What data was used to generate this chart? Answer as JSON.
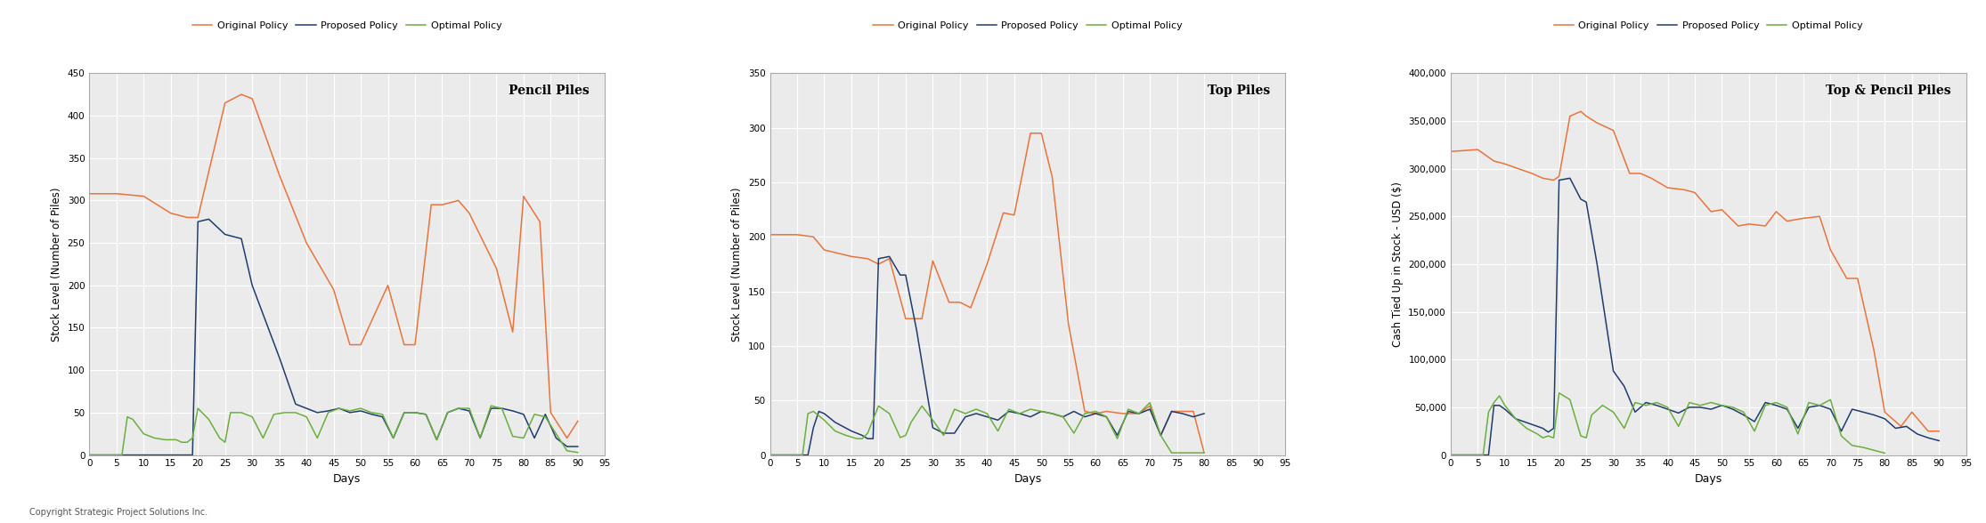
{
  "colors": {
    "original": "#E8743B",
    "proposed": "#1F3C6E",
    "optimal": "#6AAF3D"
  },
  "legend_labels": [
    "Original Policy",
    "Proposed Policy",
    "Optimal Policy"
  ],
  "subplot1": {
    "title": "Pencil Piles",
    "ylabel": "Stock Level (Number of Piles)",
    "xlabel": "Days",
    "ylim": [
      0,
      450
    ],
    "yticks": [
      0,
      50,
      100,
      150,
      200,
      250,
      300,
      350,
      400,
      450
    ],
    "xlim": [
      0,
      95
    ],
    "xticks": [
      0,
      5,
      10,
      15,
      20,
      25,
      30,
      35,
      40,
      45,
      50,
      55,
      60,
      65,
      70,
      75,
      80,
      85,
      90,
      95
    ],
    "original": [
      [
        0,
        308
      ],
      [
        5,
        308
      ],
      [
        10,
        305
      ],
      [
        15,
        285
      ],
      [
        18,
        280
      ],
      [
        20,
        280
      ],
      [
        25,
        415
      ],
      [
        28,
        425
      ],
      [
        30,
        420
      ],
      [
        35,
        330
      ],
      [
        40,
        250
      ],
      [
        45,
        195
      ],
      [
        48,
        130
      ],
      [
        50,
        130
      ],
      [
        55,
        200
      ],
      [
        58,
        130
      ],
      [
        60,
        130
      ],
      [
        63,
        295
      ],
      [
        65,
        295
      ],
      [
        68,
        300
      ],
      [
        70,
        285
      ],
      [
        75,
        220
      ],
      [
        78,
        145
      ],
      [
        80,
        305
      ],
      [
        83,
        275
      ],
      [
        85,
        50
      ],
      [
        88,
        20
      ],
      [
        90,
        40
      ]
    ],
    "proposed": [
      [
        0,
        0
      ],
      [
        19,
        0
      ],
      [
        20,
        275
      ],
      [
        22,
        278
      ],
      [
        25,
        260
      ],
      [
        28,
        255
      ],
      [
        30,
        200
      ],
      [
        35,
        115
      ],
      [
        38,
        60
      ],
      [
        40,
        55
      ],
      [
        42,
        50
      ],
      [
        44,
        52
      ],
      [
        46,
        55
      ],
      [
        48,
        50
      ],
      [
        50,
        52
      ],
      [
        52,
        48
      ],
      [
        54,
        45
      ],
      [
        56,
        20
      ],
      [
        58,
        50
      ],
      [
        60,
        50
      ],
      [
        62,
        48
      ],
      [
        64,
        18
      ],
      [
        66,
        50
      ],
      [
        68,
        55
      ],
      [
        70,
        52
      ],
      [
        72,
        20
      ],
      [
        74,
        55
      ],
      [
        76,
        55
      ],
      [
        78,
        52
      ],
      [
        80,
        48
      ],
      [
        82,
        20
      ],
      [
        84,
        48
      ],
      [
        86,
        20
      ],
      [
        88,
        10
      ],
      [
        90,
        10
      ]
    ],
    "optimal": [
      [
        0,
        0
      ],
      [
        6,
        0
      ],
      [
        7,
        45
      ],
      [
        8,
        42
      ],
      [
        10,
        25
      ],
      [
        12,
        20
      ],
      [
        14,
        18
      ],
      [
        16,
        18
      ],
      [
        17,
        15
      ],
      [
        18,
        15
      ],
      [
        19,
        20
      ],
      [
        20,
        55
      ],
      [
        22,
        42
      ],
      [
        24,
        20
      ],
      [
        25,
        15
      ],
      [
        26,
        50
      ],
      [
        28,
        50
      ],
      [
        30,
        45
      ],
      [
        32,
        20
      ],
      [
        34,
        48
      ],
      [
        36,
        50
      ],
      [
        38,
        50
      ],
      [
        40,
        45
      ],
      [
        42,
        20
      ],
      [
        44,
        50
      ],
      [
        46,
        55
      ],
      [
        48,
        52
      ],
      [
        50,
        55
      ],
      [
        52,
        50
      ],
      [
        54,
        48
      ],
      [
        56,
        20
      ],
      [
        58,
        50
      ],
      [
        60,
        50
      ],
      [
        62,
        48
      ],
      [
        64,
        18
      ],
      [
        66,
        50
      ],
      [
        68,
        55
      ],
      [
        70,
        55
      ],
      [
        72,
        20
      ],
      [
        74,
        58
      ],
      [
        76,
        55
      ],
      [
        78,
        22
      ],
      [
        80,
        20
      ],
      [
        82,
        48
      ],
      [
        84,
        45
      ],
      [
        86,
        25
      ],
      [
        88,
        5
      ],
      [
        90,
        3
      ]
    ]
  },
  "subplot2": {
    "title": "Top Piles",
    "ylabel": "Stock Level (Number of Piles)",
    "xlabel": "Days",
    "ylim": [
      0,
      350
    ],
    "yticks": [
      0,
      50,
      100,
      150,
      200,
      250,
      300,
      350
    ],
    "xlim": [
      0,
      95
    ],
    "xticks": [
      0,
      5,
      10,
      15,
      20,
      25,
      30,
      35,
      40,
      45,
      50,
      55,
      60,
      65,
      70,
      75,
      80,
      85,
      90,
      95
    ],
    "original": [
      [
        0,
        202
      ],
      [
        5,
        202
      ],
      [
        8,
        200
      ],
      [
        10,
        188
      ],
      [
        15,
        182
      ],
      [
        18,
        180
      ],
      [
        20,
        175
      ],
      [
        22,
        180
      ],
      [
        25,
        125
      ],
      [
        28,
        125
      ],
      [
        30,
        178
      ],
      [
        33,
        140
      ],
      [
        35,
        140
      ],
      [
        37,
        135
      ],
      [
        40,
        175
      ],
      [
        43,
        222
      ],
      [
        45,
        220
      ],
      [
        48,
        295
      ],
      [
        50,
        295
      ],
      [
        52,
        255
      ],
      [
        55,
        120
      ],
      [
        58,
        40
      ],
      [
        60,
        38
      ],
      [
        62,
        40
      ],
      [
        65,
        38
      ],
      [
        68,
        38
      ],
      [
        70,
        45
      ],
      [
        72,
        18
      ],
      [
        74,
        40
      ],
      [
        76,
        40
      ],
      [
        78,
        40
      ],
      [
        80,
        2
      ]
    ],
    "proposed": [
      [
        0,
        0
      ],
      [
        7,
        0
      ],
      [
        8,
        25
      ],
      [
        9,
        40
      ],
      [
        10,
        38
      ],
      [
        12,
        30
      ],
      [
        15,
        22
      ],
      [
        17,
        18
      ],
      [
        18,
        15
      ],
      [
        19,
        15
      ],
      [
        20,
        180
      ],
      [
        22,
        182
      ],
      [
        24,
        165
      ],
      [
        25,
        165
      ],
      [
        27,
        115
      ],
      [
        30,
        25
      ],
      [
        32,
        20
      ],
      [
        34,
        20
      ],
      [
        36,
        35
      ],
      [
        38,
        38
      ],
      [
        40,
        35
      ],
      [
        42,
        32
      ],
      [
        44,
        40
      ],
      [
        46,
        38
      ],
      [
        48,
        35
      ],
      [
        50,
        40
      ],
      [
        52,
        38
      ],
      [
        54,
        35
      ],
      [
        56,
        40
      ],
      [
        58,
        35
      ],
      [
        60,
        38
      ],
      [
        62,
        35
      ],
      [
        64,
        18
      ],
      [
        66,
        40
      ],
      [
        68,
        38
      ],
      [
        70,
        42
      ],
      [
        72,
        18
      ],
      [
        74,
        40
      ],
      [
        76,
        38
      ],
      [
        78,
        35
      ],
      [
        80,
        38
      ]
    ],
    "optimal": [
      [
        0,
        0
      ],
      [
        6,
        0
      ],
      [
        7,
        38
      ],
      [
        8,
        40
      ],
      [
        10,
        32
      ],
      [
        12,
        22
      ],
      [
        14,
        18
      ],
      [
        16,
        15
      ],
      [
        17,
        15
      ],
      [
        18,
        20
      ],
      [
        20,
        45
      ],
      [
        22,
        38
      ],
      [
        24,
        16
      ],
      [
        25,
        18
      ],
      [
        26,
        30
      ],
      [
        28,
        45
      ],
      [
        30,
        32
      ],
      [
        32,
        18
      ],
      [
        34,
        42
      ],
      [
        36,
        38
      ],
      [
        38,
        42
      ],
      [
        40,
        38
      ],
      [
        42,
        22
      ],
      [
        44,
        42
      ],
      [
        46,
        38
      ],
      [
        48,
        42
      ],
      [
        50,
        40
      ],
      [
        52,
        38
      ],
      [
        54,
        35
      ],
      [
        56,
        20
      ],
      [
        58,
        38
      ],
      [
        60,
        40
      ],
      [
        62,
        35
      ],
      [
        64,
        15
      ],
      [
        66,
        42
      ],
      [
        68,
        38
      ],
      [
        70,
        48
      ],
      [
        72,
        18
      ],
      [
        74,
        2
      ],
      [
        76,
        2
      ],
      [
        78,
        2
      ],
      [
        80,
        2
      ]
    ]
  },
  "subplot3": {
    "title": "Top & Pencil Piles",
    "ylabel": "Cash Tied Up in Stock - USD ($)",
    "xlabel": "Days",
    "ylim": [
      0,
      400000
    ],
    "yticks": [
      0,
      50000,
      100000,
      150000,
      200000,
      250000,
      300000,
      350000,
      400000
    ],
    "xlim": [
      0,
      95
    ],
    "xticks": [
      0,
      5,
      10,
      15,
      20,
      25,
      30,
      35,
      40,
      45,
      50,
      55,
      60,
      65,
      70,
      75,
      80,
      85,
      90,
      95
    ],
    "original": [
      [
        0,
        318000
      ],
      [
        5,
        320000
      ],
      [
        8,
        308000
      ],
      [
        10,
        305000
      ],
      [
        15,
        295000
      ],
      [
        17,
        290000
      ],
      [
        19,
        288000
      ],
      [
        20,
        292000
      ],
      [
        22,
        355000
      ],
      [
        24,
        360000
      ],
      [
        25,
        355000
      ],
      [
        27,
        348000
      ],
      [
        30,
        340000
      ],
      [
        33,
        295000
      ],
      [
        35,
        295000
      ],
      [
        37,
        290000
      ],
      [
        40,
        280000
      ],
      [
        43,
        278000
      ],
      [
        45,
        275000
      ],
      [
        48,
        255000
      ],
      [
        50,
        257000
      ],
      [
        53,
        240000
      ],
      [
        55,
        242000
      ],
      [
        58,
        240000
      ],
      [
        60,
        255000
      ],
      [
        62,
        245000
      ],
      [
        65,
        248000
      ],
      [
        68,
        250000
      ],
      [
        70,
        215000
      ],
      [
        73,
        185000
      ],
      [
        75,
        185000
      ],
      [
        78,
        110000
      ],
      [
        80,
        45000
      ],
      [
        83,
        30000
      ],
      [
        85,
        45000
      ],
      [
        88,
        25000
      ],
      [
        90,
        25000
      ]
    ],
    "proposed": [
      [
        0,
        0
      ],
      [
        7,
        0
      ],
      [
        8,
        52000
      ],
      [
        9,
        52000
      ],
      [
        10,
        48000
      ],
      [
        12,
        38000
      ],
      [
        15,
        32000
      ],
      [
        17,
        28000
      ],
      [
        18,
        24000
      ],
      [
        19,
        28000
      ],
      [
        20,
        288000
      ],
      [
        22,
        290000
      ],
      [
        24,
        268000
      ],
      [
        25,
        265000
      ],
      [
        27,
        200000
      ],
      [
        30,
        88000
      ],
      [
        32,
        72000
      ],
      [
        34,
        45000
      ],
      [
        36,
        55000
      ],
      [
        38,
        52000
      ],
      [
        40,
        48000
      ],
      [
        42,
        44000
      ],
      [
        44,
        50000
      ],
      [
        46,
        50000
      ],
      [
        48,
        48000
      ],
      [
        50,
        52000
      ],
      [
        52,
        48000
      ],
      [
        54,
        42000
      ],
      [
        56,
        35000
      ],
      [
        58,
        55000
      ],
      [
        60,
        52000
      ],
      [
        62,
        48000
      ],
      [
        64,
        28000
      ],
      [
        66,
        50000
      ],
      [
        68,
        52000
      ],
      [
        70,
        48000
      ],
      [
        72,
        25000
      ],
      [
        74,
        48000
      ],
      [
        76,
        45000
      ],
      [
        78,
        42000
      ],
      [
        80,
        38000
      ],
      [
        82,
        28000
      ],
      [
        84,
        30000
      ],
      [
        86,
        22000
      ],
      [
        88,
        18000
      ],
      [
        90,
        15000
      ]
    ],
    "optimal": [
      [
        0,
        0
      ],
      [
        6,
        0
      ],
      [
        7,
        45000
      ],
      [
        8,
        55000
      ],
      [
        9,
        62000
      ],
      [
        10,
        52000
      ],
      [
        12,
        38000
      ],
      [
        14,
        28000
      ],
      [
        16,
        22000
      ],
      [
        17,
        18000
      ],
      [
        18,
        20000
      ],
      [
        19,
        18000
      ],
      [
        20,
        65000
      ],
      [
        22,
        58000
      ],
      [
        24,
        20000
      ],
      [
        25,
        18000
      ],
      [
        26,
        42000
      ],
      [
        28,
        52000
      ],
      [
        30,
        45000
      ],
      [
        32,
        28000
      ],
      [
        34,
        55000
      ],
      [
        36,
        52000
      ],
      [
        38,
        55000
      ],
      [
        40,
        50000
      ],
      [
        42,
        30000
      ],
      [
        44,
        55000
      ],
      [
        46,
        52000
      ],
      [
        48,
        55000
      ],
      [
        50,
        52000
      ],
      [
        52,
        50000
      ],
      [
        54,
        45000
      ],
      [
        56,
        25000
      ],
      [
        58,
        52000
      ],
      [
        60,
        55000
      ],
      [
        62,
        50000
      ],
      [
        64,
        22000
      ],
      [
        66,
        55000
      ],
      [
        68,
        52000
      ],
      [
        70,
        58000
      ],
      [
        72,
        20000
      ],
      [
        74,
        10000
      ],
      [
        76,
        8000
      ],
      [
        78,
        5000
      ],
      [
        80,
        2000
      ]
    ]
  },
  "copyright": "Copyright Strategic Project Solutions Inc.",
  "bg_color": "#ffffff",
  "plot_bg_color": "#ebebeb",
  "grid_color": "#ffffff"
}
